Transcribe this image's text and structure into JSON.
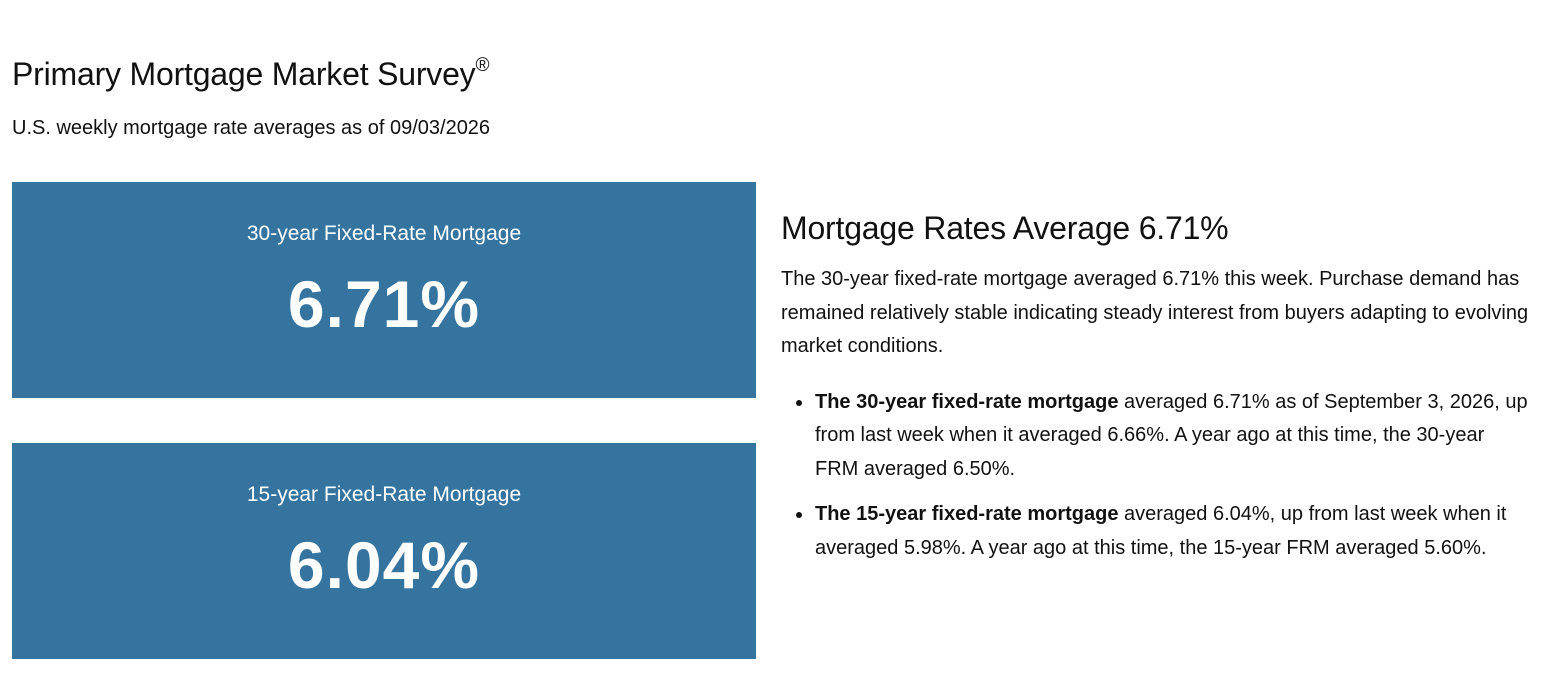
{
  "colors": {
    "card_background": "#3674a0",
    "card_text": "#ffffff",
    "body_text": "#111111"
  },
  "header": {
    "title": "Primary Mortgage Market Survey",
    "title_mark": "®",
    "subtitle": "U.S. weekly mortgage rate averages as of 09/03/2026"
  },
  "cards": [
    {
      "label": "30-year Fixed-Rate Mortgage",
      "value": "6.71%"
    },
    {
      "label": "15-year Fixed-Rate Mortgage",
      "value": "6.04%"
    }
  ],
  "summary": {
    "heading": "Mortgage Rates Average 6.71%",
    "body": "The 30-year fixed-rate mortgage averaged 6.71% this week. Purchase demand has remained relatively stable indicating steady interest from buyers adapting to evolving market conditions.",
    "bullets": [
      {
        "lead": "The 30-year fixed-rate mortgage",
        "text": " averaged 6.71% as of September 3, 2026, up from last week when it averaged 6.66%. A year ago at this time, the 30-year FRM averaged 6.50%."
      },
      {
        "lead": "The 15-year fixed-rate mortgage",
        "text": " averaged 6.04%, up from last week when it averaged 5.98%. A year ago at this time, the 15-year FRM averaged 5.60%."
      }
    ]
  }
}
